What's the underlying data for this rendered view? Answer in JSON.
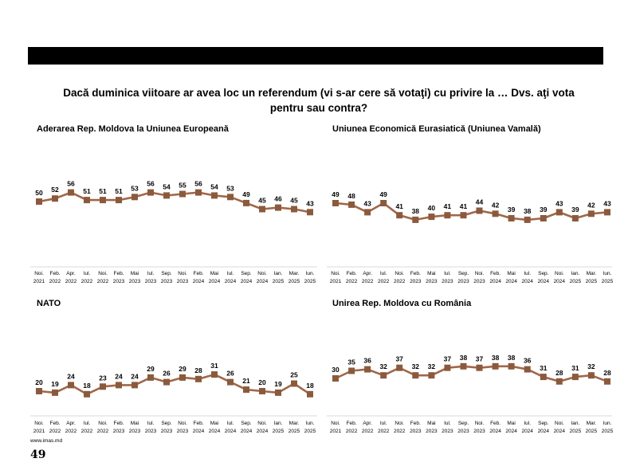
{
  "header": {
    "question": "Dacă duminica viitoare ar avea loc un referendum (vi s-ar cere să votaţi) cu privire la … Dvs. aţi vota pentru sau contra?"
  },
  "footer": {
    "source": "www.imas.md",
    "page_number": "49"
  },
  "colors": {
    "line": "#A0674A",
    "marker": "#8B5A3C",
    "bar": "#000000"
  },
  "chart_data": [
    {
      "type": "line",
      "title": "Aderarea Rep. Moldova la Uniunea Europeană",
      "categories": [
        [
          "Noi.",
          "2021"
        ],
        [
          "Feb.",
          "2022"
        ],
        [
          "Apr.",
          "2022"
        ],
        [
          "Iul.",
          "2022"
        ],
        [
          "Noi.",
          "2022"
        ],
        [
          "Feb.",
          "2023"
        ],
        [
          "Mai",
          "2023"
        ],
        [
          "Iul.",
          "2023"
        ],
        [
          "Sep.",
          "2023"
        ],
        [
          "Noi.",
          "2023"
        ],
        [
          "Feb.",
          "2024"
        ],
        [
          "Mai",
          "2024"
        ],
        [
          "Iul.",
          "2024"
        ],
        [
          "Sep.",
          "2024"
        ],
        [
          "Noi.",
          "2024"
        ],
        [
          "Ian.",
          "2025"
        ],
        [
          "Mar.",
          "2025"
        ],
        [
          "Iun.",
          "2025"
        ]
      ],
      "values": [
        50,
        52,
        56,
        51,
        51,
        51,
        53,
        56,
        54,
        55,
        56,
        54,
        53,
        49,
        45,
        46,
        45,
        43
      ]
    },
    {
      "type": "line",
      "title": "Uniunea Economică Eurasiatică (Uniunea Vamală)",
      "categories": [
        [
          "Noi.",
          "2021"
        ],
        [
          "Feb.",
          "2022"
        ],
        [
          "Apr.",
          "2022"
        ],
        [
          "Iul.",
          "2022"
        ],
        [
          "Noi.",
          "2022"
        ],
        [
          "Feb.",
          "2023"
        ],
        [
          "Mai",
          "2023"
        ],
        [
          "Iul.",
          "2023"
        ],
        [
          "Sep.",
          "2023"
        ],
        [
          "Noi.",
          "2023"
        ],
        [
          "Feb.",
          "2024"
        ],
        [
          "Mai",
          "2024"
        ],
        [
          "Iul.",
          "2024"
        ],
        [
          "Sep.",
          "2024"
        ],
        [
          "Noi.",
          "2024"
        ],
        [
          "Ian.",
          "2025"
        ],
        [
          "Mar.",
          "2025"
        ],
        [
          "Iun.",
          "2025"
        ]
      ],
      "values": [
        49,
        48,
        43,
        49,
        41,
        38,
        40,
        41,
        41,
        44,
        42,
        39,
        38,
        39,
        43,
        39,
        42,
        43
      ]
    },
    {
      "type": "line",
      "title": "NATO",
      "categories": [
        [
          "Noi.",
          "2021"
        ],
        [
          "Feb.",
          "2022"
        ],
        [
          "Apr.",
          "2022"
        ],
        [
          "Iul.",
          "2022"
        ],
        [
          "Noi.",
          "2022"
        ],
        [
          "Feb.",
          "2023"
        ],
        [
          "Mai",
          "2023"
        ],
        [
          "Iul.",
          "2023"
        ],
        [
          "Sep.",
          "2023"
        ],
        [
          "Noi.",
          "2023"
        ],
        [
          "Feb.",
          "2024"
        ],
        [
          "Mai",
          "2024"
        ],
        [
          "Iul.",
          "2024"
        ],
        [
          "Sep.",
          "2024"
        ],
        [
          "Noi.",
          "2024"
        ],
        [
          "Ian.",
          "2025"
        ],
        [
          "Mar.",
          "2025"
        ],
        [
          "Iun.",
          "2025"
        ]
      ],
      "values": [
        20,
        19,
        24,
        18,
        23,
        24,
        24,
        29,
        26,
        29,
        28,
        31,
        26,
        21,
        20,
        19,
        25,
        18
      ]
    },
    {
      "type": "line",
      "title": "Unirea Rep. Moldova cu România",
      "categories": [
        [
          "Noi.",
          "2021"
        ],
        [
          "Feb.",
          "2022"
        ],
        [
          "Apr.",
          "2022"
        ],
        [
          "Iul.",
          "2022"
        ],
        [
          "Noi.",
          "2022"
        ],
        [
          "Feb.",
          "2023"
        ],
        [
          "Mai",
          "2023"
        ],
        [
          "Iul.",
          "2023"
        ],
        [
          "Sep.",
          "2023"
        ],
        [
          "Noi.",
          "2023"
        ],
        [
          "Feb.",
          "2024"
        ],
        [
          "Mai",
          "2024"
        ],
        [
          "Iul.",
          "2024"
        ],
        [
          "Sep.",
          "2024"
        ],
        [
          "Noi.",
          "2024"
        ],
        [
          "Ian.",
          "2025"
        ],
        [
          "Mar.",
          "2025"
        ],
        [
          "Iun.",
          "2025"
        ]
      ],
      "values": [
        30,
        35,
        36,
        32,
        37,
        32,
        32,
        37,
        38,
        37,
        38,
        38,
        36,
        31,
        28,
        31,
        32,
        28
      ]
    }
  ]
}
